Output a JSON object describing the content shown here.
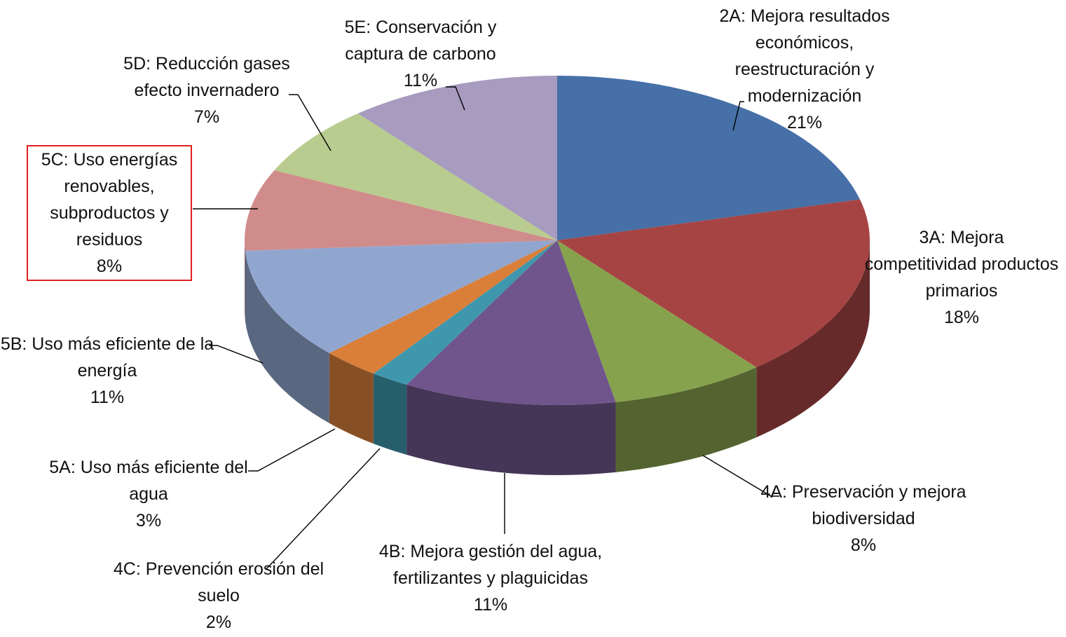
{
  "chart_data": {
    "type": "pie3d",
    "categories": [
      "2A: Mejora resultados económicos, reestructuración y modernización",
      "3A: Mejora competitividad productos primarios",
      "4A: Preservación y mejora biodiversidad",
      "4B: Mejora gestión del agua, fertilizantes y plaguicidas",
      "4C: Prevención erosión del suelo",
      "5A: Uso más eficiente del agua",
      "5B: Uso más eficiente de la energía",
      "5C: Uso energías renovables, subproductos y residuos",
      "5D: Reducción gases efecto invernadero",
      "5E: Conservación y captura de carbono"
    ],
    "values": [
      21,
      18,
      8,
      11,
      2,
      3,
      11,
      8,
      7,
      11
    ],
    "value_labels": [
      "21%",
      "18%",
      "8%",
      "11%",
      "2%",
      "3%",
      "11%",
      "8%",
      "7%",
      "11%"
    ],
    "colors": [
      "#4670a7",
      "#a64444",
      "#87a24d",
      "#6f558c",
      "#3f97ad",
      "#d97f3a",
      "#91a6cf",
      "#d08c8b",
      "#b8cc8f",
      "#a79bbf"
    ],
    "highlight": 7,
    "highlight_color": "#e02020"
  }
}
